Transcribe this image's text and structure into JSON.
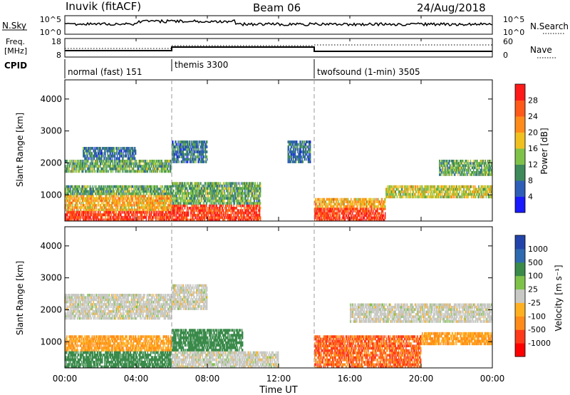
{
  "header": {
    "station": "Inuvik (fitACF)",
    "beam": "Beam 06",
    "date": "24/Aug/2018"
  },
  "nsky_panel": {
    "left_label": "N.Sky",
    "left_ticks": [
      "10^5",
      "10^0"
    ],
    "right_ticks": [
      "10^5",
      "10^0"
    ],
    "right_label": "N.Search",
    "right_label_line": "dotted"
  },
  "freq_panel": {
    "left_label_line1": "Freq.",
    "left_label_line2": "[MHz]",
    "left_ticks": [
      "18",
      "8"
    ],
    "right_ticks": [
      "60",
      "0"
    ],
    "right_label": "Nave",
    "right_label_line": "dotted"
  },
  "cpid": {
    "label": "CPID",
    "segments": [
      {
        "name": "normal (fast) 151",
        "start_hour": 0,
        "end_hour": 6
      },
      {
        "name": "themis 3300",
        "start_hour": 6,
        "end_hour": 14
      },
      {
        "name": "twofsound (1-min) 3505",
        "start_hour": 14,
        "end_hour": 24
      }
    ]
  },
  "power_panel": {
    "ylabel": "Slant Range [km]",
    "yticks": [
      "4000",
      "3000",
      "2000",
      "1000"
    ],
    "colorbar_label": "Power [dB]",
    "colorbar_ticks": [
      "28",
      "24",
      "20",
      "16",
      "12",
      "8",
      "4"
    ],
    "colors": [
      "#1a1aff",
      "#2e5fb8",
      "#3e8a5a",
      "#7fc24a",
      "#f0c020",
      "#ff8c1a",
      "#ff5a1a",
      "#ff1a1a"
    ]
  },
  "velocity_panel": {
    "ylabel": "Slant Range [km]",
    "yticks": [
      "4000",
      "3000",
      "2000",
      "1000"
    ],
    "colorbar_label": "Velocity [m s⁻¹]",
    "colorbar_ticks": [
      "1000",
      "500",
      "100",
      "25",
      "-25",
      "-100",
      "-500",
      "-1000"
    ],
    "colors": [
      "#2244aa",
      "#2e6ab0",
      "#3a8a4a",
      "#7fc24a",
      "#c8c8c4",
      "#ffb020",
      "#ff8c1a",
      "#ff3a1a",
      "#ff0000"
    ]
  },
  "x_axis": {
    "label": "Time UT",
    "ticks": [
      "00:00",
      "04:00",
      "08:00",
      "12:00",
      "16:00",
      "20:00",
      "00:00"
    ]
  },
  "chart_data": {
    "type": "heatmap",
    "x_range_hours": [
      0,
      24
    ],
    "y_range_km": [
      180,
      4600
    ],
    "mode_change_hours": [
      6,
      14
    ],
    "power_regions": [
      {
        "t0": 0,
        "t1": 6,
        "r0": 180,
        "r1": 500,
        "level": 28
      },
      {
        "t0": 0,
        "t1": 6,
        "r0": 500,
        "r1": 1000,
        "level": 20
      },
      {
        "t0": 0,
        "t1": 6,
        "r0": 1000,
        "r1": 1300,
        "level": 12
      },
      {
        "t0": 0,
        "t1": 6,
        "r0": 1700,
        "r1": 2100,
        "level": 12
      },
      {
        "t0": 1,
        "t1": 4,
        "r0": 2100,
        "r1": 2500,
        "level": 8
      },
      {
        "t0": 6,
        "t1": 11,
        "r0": 180,
        "r1": 700,
        "level": 28
      },
      {
        "t0": 6,
        "t1": 11,
        "r0": 700,
        "r1": 1400,
        "level": 12
      },
      {
        "t0": 6,
        "t1": 8,
        "r0": 2000,
        "r1": 2700,
        "level": 8
      },
      {
        "t0": 12.5,
        "t1": 13.8,
        "r0": 2000,
        "r1": 2700,
        "level": 8
      },
      {
        "t0": 14,
        "t1": 18,
        "r0": 180,
        "r1": 600,
        "level": 28
      },
      {
        "t0": 14,
        "t1": 18,
        "r0": 600,
        "r1": 900,
        "level": 20
      },
      {
        "t0": 18,
        "t1": 24,
        "r0": 900,
        "r1": 1300,
        "level": 16
      },
      {
        "t0": 21,
        "t1": 24,
        "r0": 1600,
        "r1": 2100,
        "level": 12
      }
    ],
    "velocity_regions": [
      {
        "t0": 0,
        "t1": 6,
        "r0": 700,
        "r1": 1200,
        "level": -100
      },
      {
        "t0": 0,
        "t1": 6,
        "r0": 180,
        "r1": 700,
        "level": 100
      },
      {
        "t0": 0,
        "t1": 6,
        "r0": 1700,
        "r1": 2500,
        "level": 0
      },
      {
        "t0": 6,
        "t1": 10,
        "r0": 700,
        "r1": 1400,
        "level": 100
      },
      {
        "t0": 6,
        "t1": 12,
        "r0": 180,
        "r1": 700,
        "level": 0
      },
      {
        "t0": 6,
        "t1": 8,
        "r0": 2000,
        "r1": 2800,
        "level": 0
      },
      {
        "t0": 14,
        "t1": 20,
        "r0": 180,
        "r1": 1200,
        "level": -500
      },
      {
        "t0": 16,
        "t1": 24,
        "r0": 1600,
        "r1": 2200,
        "level": 0
      },
      {
        "t0": 20,
        "t1": 24,
        "r0": 900,
        "r1": 1300,
        "level": -100
      }
    ]
  }
}
